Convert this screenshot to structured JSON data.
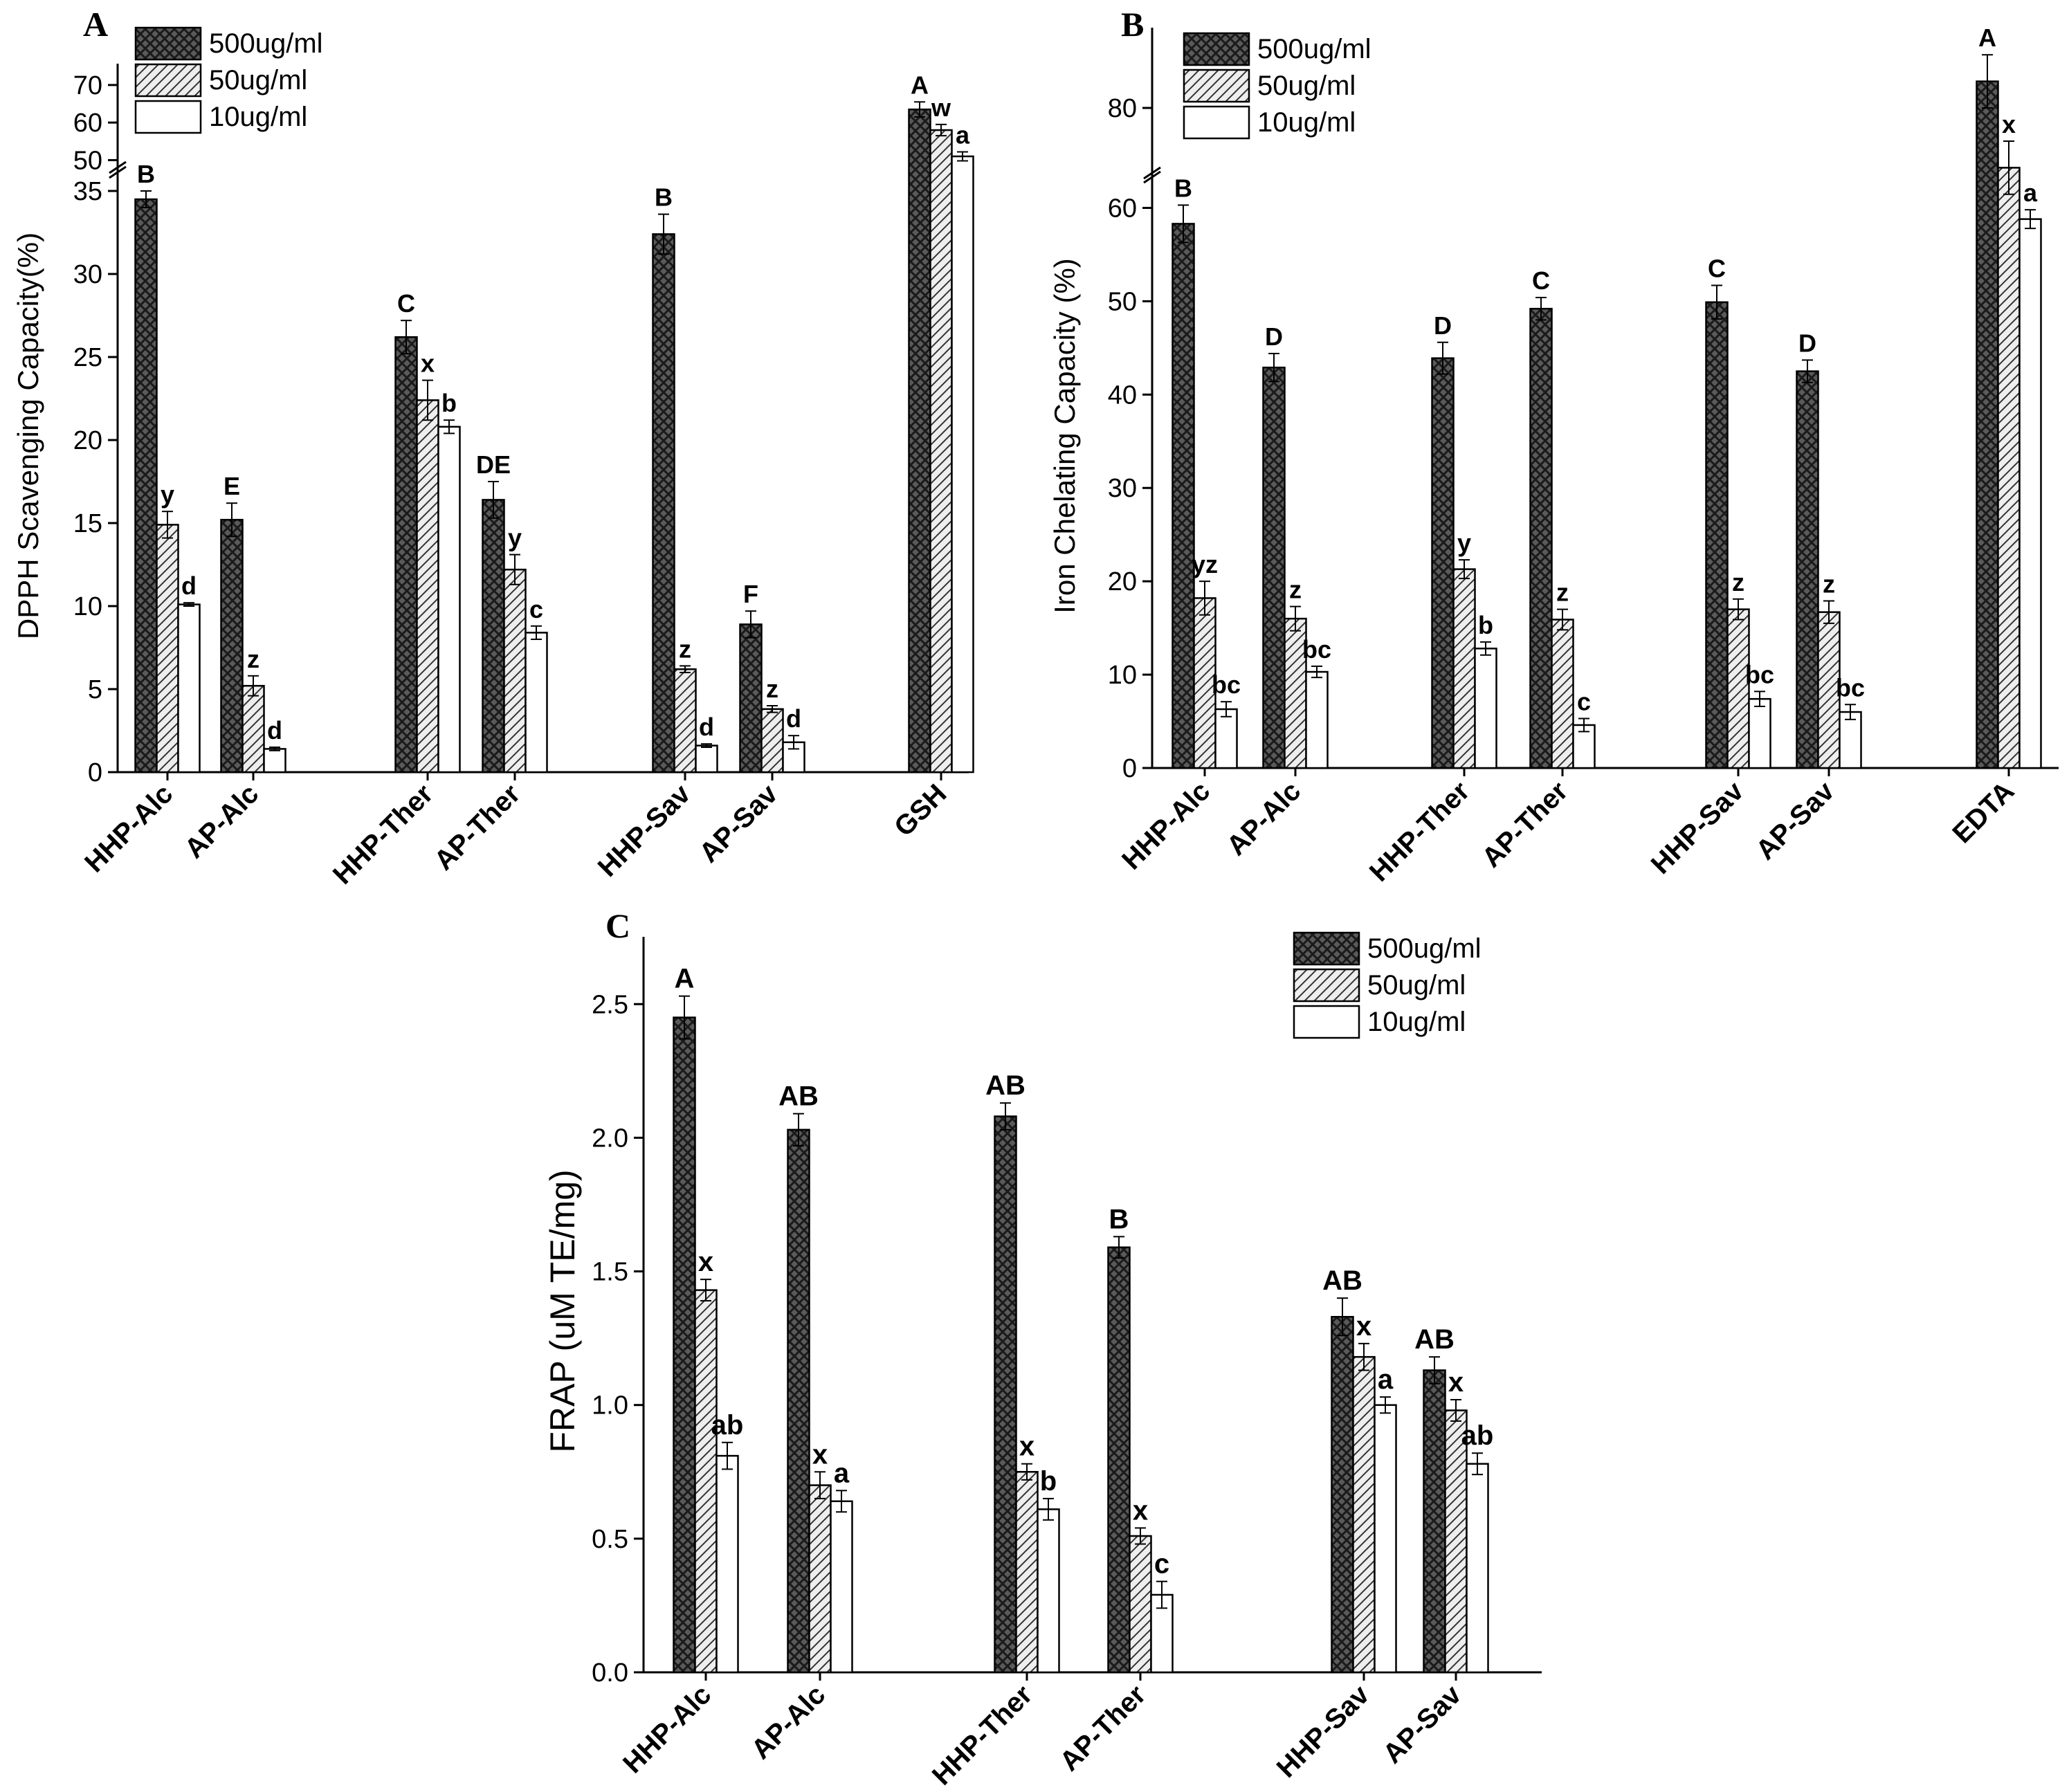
{
  "chart_data": [
    {
      "panel": "A",
      "type": "bar",
      "ylabel": "DPPH Scavenging Capacity(%)",
      "categories": [
        "HHP-Alc",
        "AP-Alc",
        "HHP-Ther",
        "AP-Ther",
        "HHP-Sav",
        "AP-Sav",
        "GSH"
      ],
      "lower_ticks": [
        "0",
        "5",
        "10",
        "15",
        "20",
        "25",
        "30",
        "35"
      ],
      "upper_ticks": [
        "50",
        "60",
        "70"
      ],
      "broken_axis": true,
      "series": [
        {
          "name": "500ug/ml",
          "pattern": "crosshatch",
          "values": [
            34.5,
            15.2,
            26.2,
            16.4,
            32.4,
            8.9,
            63.5
          ],
          "errors": [
            0.5,
            1.0,
            1.0,
            1.1,
            1.2,
            0.8,
            2.0
          ],
          "letters": [
            "B",
            "E",
            "C",
            "DE",
            "B",
            "F",
            "A"
          ]
        },
        {
          "name": "50ug/ml",
          "pattern": "diagonal",
          "values": [
            14.9,
            5.2,
            22.4,
            12.2,
            6.2,
            3.8,
            58.0
          ],
          "errors": [
            0.8,
            0.6,
            1.2,
            0.9,
            0.2,
            0.2,
            1.5
          ],
          "letters": [
            "y",
            "z",
            "x",
            "y",
            "z",
            "z",
            "w"
          ]
        },
        {
          "name": "10ug/ml",
          "pattern": "white",
          "values": [
            10.1,
            1.4,
            20.8,
            8.4,
            1.6,
            1.8,
            51.0
          ],
          "errors": [
            0.1,
            0.1,
            0.4,
            0.4,
            0.1,
            0.4,
            1.2
          ],
          "letters": [
            "d",
            "d",
            "b",
            "c",
            "d",
            "d",
            "a"
          ]
        }
      ]
    },
    {
      "panel": "B",
      "type": "bar",
      "ylabel": "Iron Chelating Capacity (%)",
      "categories": [
        "HHP-Alc",
        "AP-Alc",
        "HHP-Ther",
        "AP-Ther",
        "HHP-Sav",
        "AP-Sav",
        "EDTA"
      ],
      "lower_ticks": [
        "0",
        "10",
        "20",
        "30",
        "40",
        "50",
        "60"
      ],
      "upper_ticks": [
        "80"
      ],
      "broken_axis": true,
      "series": [
        {
          "name": "500ug/ml",
          "pattern": "crosshatch",
          "values": [
            58.3,
            42.9,
            43.9,
            49.2,
            49.9,
            42.5,
            84.0
          ],
          "errors": [
            2.0,
            1.5,
            1.7,
            1.2,
            1.8,
            1.2,
            4.0
          ],
          "letters": [
            "B",
            "D",
            "D",
            "C",
            "C",
            "D",
            "A"
          ]
        },
        {
          "name": "50ug/ml",
          "pattern": "diagonal",
          "values": [
            18.2,
            16.0,
            21.3,
            15.9,
            17.0,
            16.7,
            71.0
          ],
          "errors": [
            1.8,
            1.3,
            1.0,
            1.1,
            1.1,
            1.2,
            4.0
          ],
          "letters": [
            "yz",
            "z",
            "y",
            "z",
            "z",
            "z",
            "x"
          ]
        },
        {
          "name": "10ug/ml",
          "pattern": "white",
          "values": [
            6.3,
            10.3,
            12.8,
            4.6,
            7.4,
            6.0,
            58.8
          ],
          "errors": [
            0.8,
            0.6,
            0.7,
            0.7,
            0.8,
            0.8,
            1.0
          ],
          "letters": [
            "bc",
            "bc",
            "b",
            "c",
            "bc",
            "bc",
            "a"
          ]
        }
      ]
    },
    {
      "panel": "C",
      "type": "bar",
      "ylabel": "FRAP (uM TE/mg)",
      "categories": [
        "HHP-Alc",
        "AP-Alc",
        "HHP-Ther",
        "AP-Ther",
        "HHP-Sav",
        "AP-Sav"
      ],
      "yticks": [
        "0.0",
        "0.5",
        "1.0",
        "1.5",
        "2.0",
        "2.5"
      ],
      "ylim": [
        0,
        2.7
      ],
      "series": [
        {
          "name": "500ug/ml",
          "pattern": "crosshatch",
          "values": [
            2.45,
            2.03,
            2.08,
            1.59,
            1.33,
            1.13
          ],
          "errors": [
            0.08,
            0.06,
            0.05,
            0.04,
            0.07,
            0.05
          ],
          "letters": [
            "A",
            "AB",
            "AB",
            "B",
            "AB",
            "AB"
          ]
        },
        {
          "name": "50ug/ml",
          "pattern": "diagonal",
          "values": [
            1.43,
            0.7,
            0.75,
            0.51,
            1.18,
            0.98
          ],
          "errors": [
            0.04,
            0.05,
            0.03,
            0.03,
            0.05,
            0.04
          ],
          "letters": [
            "x",
            "x",
            "x",
            "x",
            "x",
            "x"
          ]
        },
        {
          "name": "10ug/ml",
          "pattern": "white",
          "values": [
            0.81,
            0.64,
            0.61,
            0.29,
            1.0,
            0.78
          ],
          "errors": [
            0.05,
            0.04,
            0.04,
            0.05,
            0.03,
            0.04
          ],
          "letters": [
            "ab",
            "a",
            "b",
            "c",
            "a",
            "ab"
          ]
        }
      ]
    }
  ]
}
